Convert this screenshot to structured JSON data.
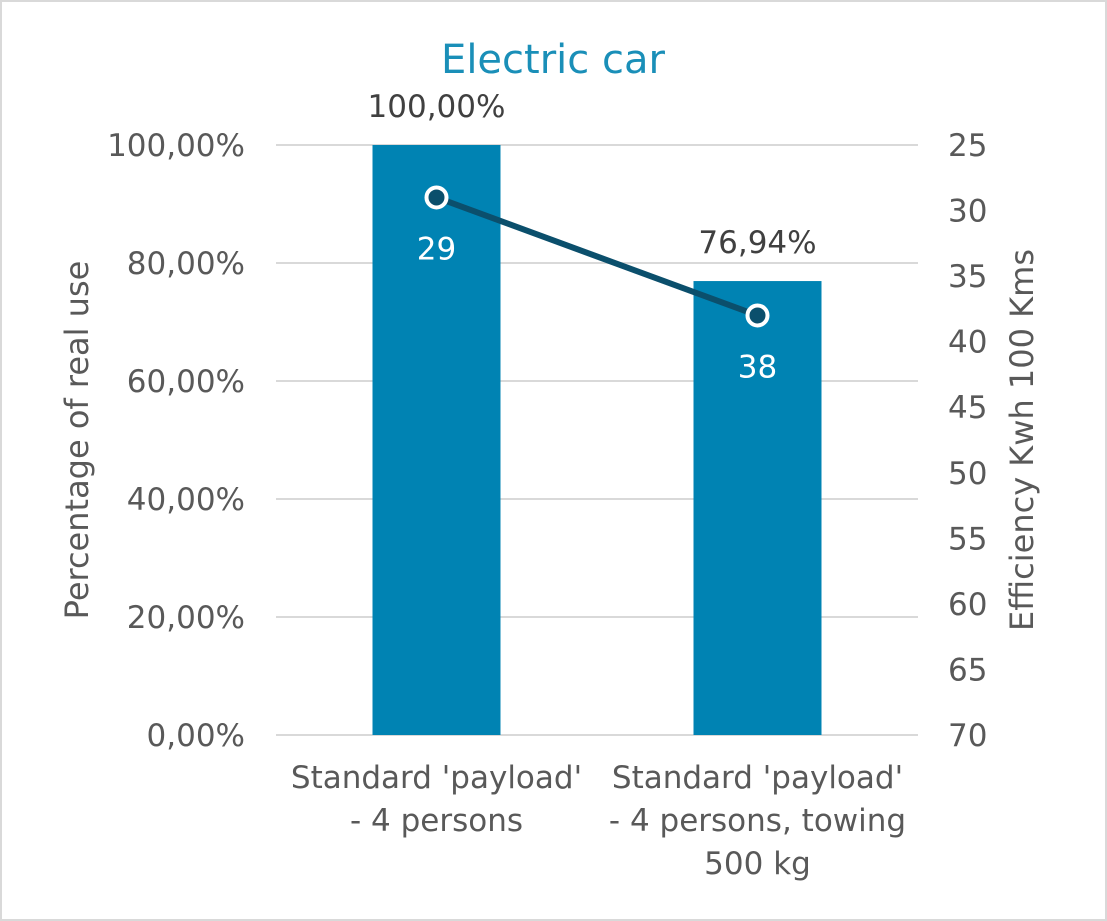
{
  "chart_data": {
    "type": "bar+line",
    "title": "Electric car",
    "categories": [
      [
        "Standard 'payload'",
        "- 4 persons"
      ],
      [
        "Standard 'payload'",
        "- 4 persons, towing",
        "500 kg"
      ]
    ],
    "ylabel_left": "Percentage of real use",
    "ylabel_right": "Efficiency Kwh  100 Kms",
    "left_axis": {
      "min": 0,
      "max": 100,
      "step": 20,
      "ticks": [
        "0,00%",
        "20,00%",
        "40,00%",
        "60,00%",
        "80,00%",
        "100,00%"
      ]
    },
    "right_axis": {
      "min": 25,
      "max": 70,
      "step": 5,
      "reversed": true,
      "ticks": [
        "25",
        "30",
        "35",
        "40",
        "45",
        "50",
        "55",
        "60",
        "65",
        "70"
      ]
    },
    "bars": {
      "values": [
        100.0,
        76.94
      ],
      "labels": [
        "100,00%",
        "76,94%"
      ],
      "color": "#0083b3"
    },
    "line": {
      "values": [
        29,
        38
      ],
      "labels": [
        "29",
        "38"
      ],
      "color": "#0b4f6c"
    },
    "grid": true,
    "legend": "none",
    "colors": {
      "title": "#1a8fb8",
      "text": "#595959",
      "grid": "#d9d9d9",
      "bar_label": "#404040"
    }
  }
}
